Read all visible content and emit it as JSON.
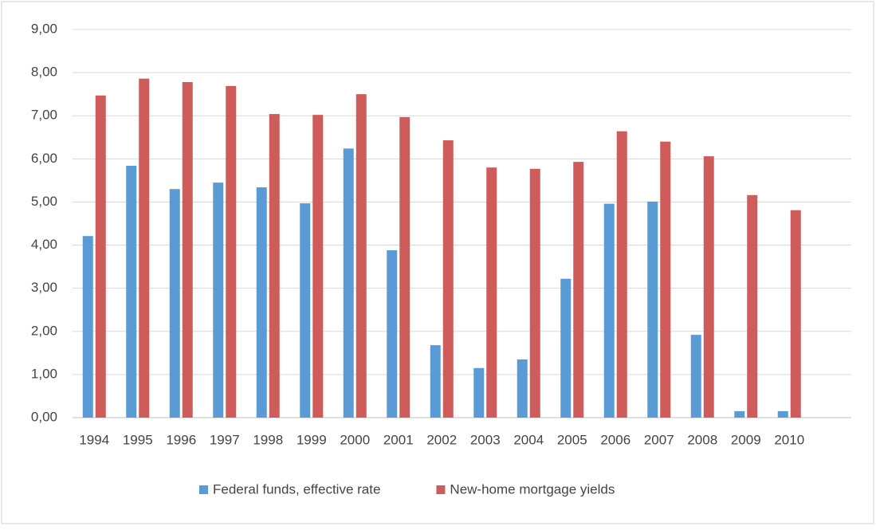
{
  "chart_data": {
    "type": "bar",
    "categories": [
      "1994",
      "1995",
      "1996",
      "1997",
      "1998",
      "1999",
      "2000",
      "2001",
      "2002",
      "2003",
      "2004",
      "2005",
      "2006",
      "2007",
      "2008",
      "2009",
      "2010"
    ],
    "series": [
      {
        "name": "Federal funds, effective rate",
        "color": "#5b9bd5",
        "values": [
          4.21,
          5.84,
          5.3,
          5.45,
          5.34,
          4.97,
          6.24,
          3.88,
          1.68,
          1.15,
          1.35,
          3.22,
          4.96,
          5.01,
          1.92,
          0.15,
          0.15
        ]
      },
      {
        "name": "New-home mortgage yields",
        "color": "#cd5c5a",
        "values": [
          7.47,
          7.86,
          7.78,
          7.69,
          7.04,
          7.02,
          7.5,
          6.97,
          6.43,
          5.8,
          5.77,
          5.93,
          6.64,
          6.4,
          6.06,
          5.16,
          4.81
        ]
      }
    ],
    "ylim": [
      0,
      9
    ],
    "yticks": [
      {
        "value": 0,
        "label": "0,00"
      },
      {
        "value": 1,
        "label": "1,00"
      },
      {
        "value": 2,
        "label": "2,00"
      },
      {
        "value": 3,
        "label": "3,00"
      },
      {
        "value": 4,
        "label": "4,00"
      },
      {
        "value": 5,
        "label": "5,00"
      },
      {
        "value": 6,
        "label": "6,00"
      },
      {
        "value": 7,
        "label": "7,00"
      },
      {
        "value": 8,
        "label": "8,00"
      },
      {
        "value": 9,
        "label": "9,00"
      }
    ],
    "grid": true,
    "legend": "bottom"
  }
}
